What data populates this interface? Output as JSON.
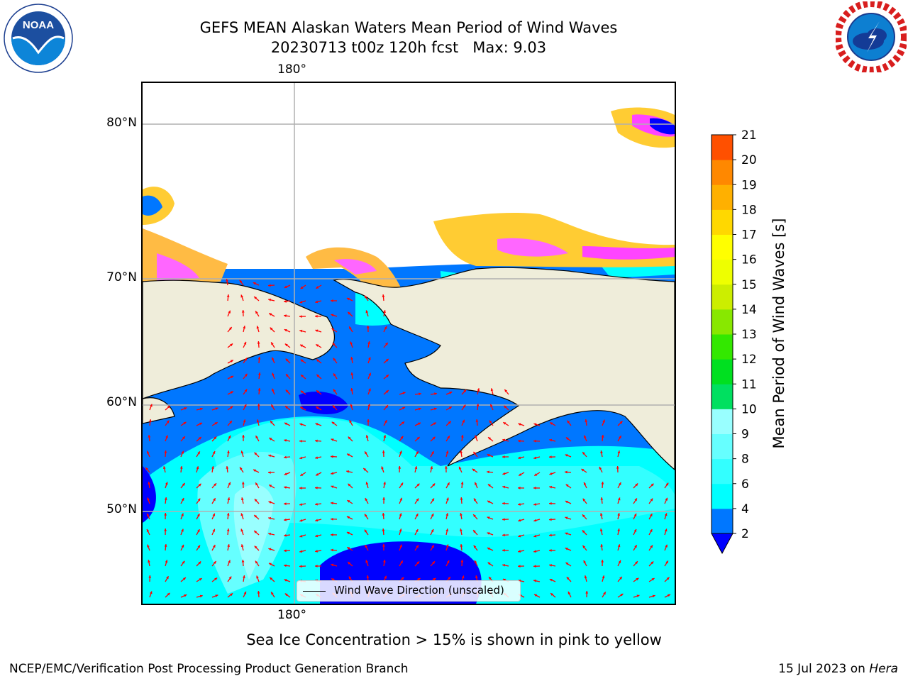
{
  "header": {
    "title_line1": "GEFS MEAN Alaskan Waters Mean Period of Wind Waves",
    "title_line2": "20230713 t00z 120h fcst   Max: 9.03"
  },
  "logos": {
    "left": "NOAA",
    "left_ring_text": "NATIONAL OCEANIC AND ATMOSPHERIC ADMINISTRATION · U.S. DEPARTMENT OF COMMERCE",
    "right_ring_text": "NATIONAL WEATHER SERVICE"
  },
  "map": {
    "lon_label_top": "180°",
    "lon_label_bottom": "180°",
    "lat_labels": [
      "80°N",
      "70°N",
      "60°N",
      "50°N"
    ],
    "legend": "Wind Wave Direction (unscaled)",
    "arrow_color": "#ff0000",
    "land_color": "#efedda",
    "gridline_color": "#b0b0b0"
  },
  "colorbar": {
    "label": "Mean Period of Wind Waves [s]",
    "ticks": [
      "2",
      "4",
      "6",
      "8",
      "9",
      "10",
      "11",
      "12",
      "13",
      "14",
      "15",
      "16",
      "17",
      "18",
      "19",
      "20",
      "21"
    ],
    "colors": [
      "#0077ff",
      "#00ffff",
      "#33ffff",
      "#66ffff",
      "#99ffff",
      "#00e060",
      "#00e020",
      "#33e800",
      "#88e800",
      "#ccee00",
      "#eeff00",
      "#ffff00",
      "#ffd800",
      "#ffb000",
      "#ff8800",
      "#ff5000",
      "#ff2000",
      "#ff0000"
    ],
    "under_color": "#0000ff"
  },
  "footer": {
    "subtitle": "Sea Ice Concentration > 15% is shown in pink to yellow",
    "left": "NCEP/EMC/Verification Post Processing Product Generation Branch",
    "right_date": "15 Jul 2023 on",
    "right_machine": "Hera"
  }
}
